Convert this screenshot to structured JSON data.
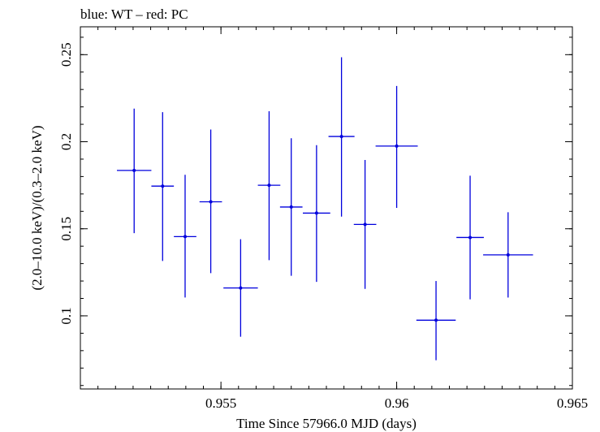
{
  "chart_data": {
    "type": "scatter",
    "title": "blue: WT – red: PC",
    "xlabel": "Time Since 57966.0 MJD (days)",
    "ylabel": "(2.0–10.0 keV)/(0.3–2.0 keV)",
    "xlim": [
      0.951,
      0.965
    ],
    "ylim": [
      0.058,
      0.266
    ],
    "x_ticks": [
      {
        "value": 0.955,
        "label": "0.955"
      },
      {
        "value": 0.96,
        "label": "0.96"
      },
      {
        "value": 0.965,
        "label": "0.965"
      }
    ],
    "y_ticks": [
      {
        "value": 0.1,
        "label": "0.1"
      },
      {
        "value": 0.15,
        "label": "0.15"
      },
      {
        "value": 0.2,
        "label": "0.2"
      },
      {
        "value": 0.25,
        "label": "0.25"
      }
    ],
    "series": [
      {
        "name": "WT",
        "color": "#0000dd",
        "points": [
          {
            "x": 0.95253,
            "y": 0.1835,
            "xerr": 0.00049,
            "ylo": 0.1475,
            "yhi": 0.219
          },
          {
            "x": 0.95334,
            "y": 0.1745,
            "xerr": 0.00032,
            "ylo": 0.1315,
            "yhi": 0.217
          },
          {
            "x": 0.95398,
            "y": 0.1455,
            "xerr": 0.00032,
            "ylo": 0.1105,
            "yhi": 0.181
          },
          {
            "x": 0.95471,
            "y": 0.1655,
            "xerr": 0.00032,
            "ylo": 0.1245,
            "yhi": 0.207
          },
          {
            "x": 0.95556,
            "y": 0.116,
            "xerr": 0.00049,
            "ylo": 0.088,
            "yhi": 0.144
          },
          {
            "x": 0.95637,
            "y": 0.175,
            "xerr": 0.00032,
            "ylo": 0.132,
            "yhi": 0.2175
          },
          {
            "x": 0.957,
            "y": 0.1625,
            "xerr": 0.00032,
            "ylo": 0.123,
            "yhi": 0.202
          },
          {
            "x": 0.95772,
            "y": 0.159,
            "xerr": 0.00039,
            "ylo": 0.1195,
            "yhi": 0.198
          },
          {
            "x": 0.95843,
            "y": 0.203,
            "xerr": 0.00037,
            "ylo": 0.157,
            "yhi": 0.2485
          },
          {
            "x": 0.9591,
            "y": 0.1525,
            "xerr": 0.00032,
            "ylo": 0.1155,
            "yhi": 0.1895
          },
          {
            "x": 0.96,
            "y": 0.1975,
            "xerr": 0.0006,
            "ylo": 0.162,
            "yhi": 0.232
          },
          {
            "x": 0.96112,
            "y": 0.0975,
            "xerr": 0.00056,
            "ylo": 0.0745,
            "yhi": 0.12
          },
          {
            "x": 0.96209,
            "y": 0.145,
            "xerr": 0.00039,
            "ylo": 0.1095,
            "yhi": 0.1805
          },
          {
            "x": 0.96317,
            "y": 0.135,
            "xerr": 0.00071,
            "ylo": 0.1105,
            "yhi": 0.1595
          }
        ]
      }
    ]
  }
}
